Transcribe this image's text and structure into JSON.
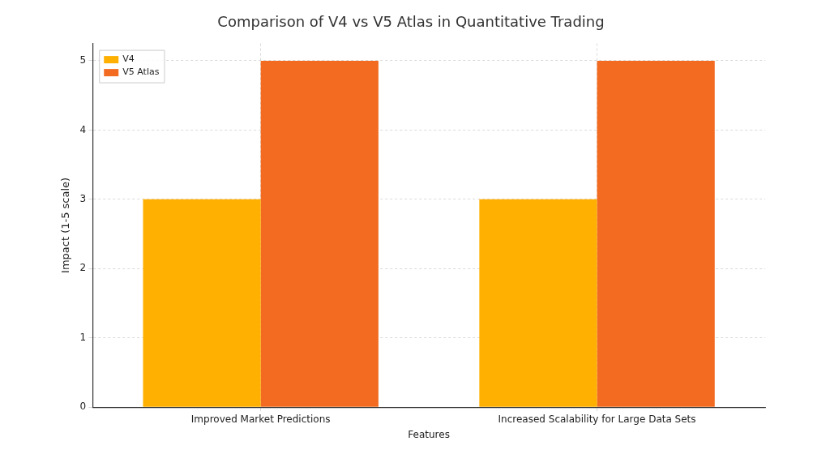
{
  "chart_data": {
    "type": "bar",
    "title": "Comparison of V4 vs V5 Atlas in Quantitative Trading",
    "x_label": "Features",
    "y_label": "Impact (1-5 scale)",
    "categories": [
      "Improved Market Predictions",
      "Increased Scalability for Large Data Sets"
    ],
    "series": [
      {
        "name": "V4",
        "color": "#ffb000",
        "values": [
          3,
          3
        ]
      },
      {
        "name": "V5 Atlas",
        "color": "#f26b21",
        "values": [
          5,
          5
        ]
      }
    ],
    "ylim": [
      0,
      5.25
    ],
    "yticks": [
      0,
      1,
      2,
      3,
      4,
      5
    ],
    "grid": true,
    "legend": "upper left"
  }
}
